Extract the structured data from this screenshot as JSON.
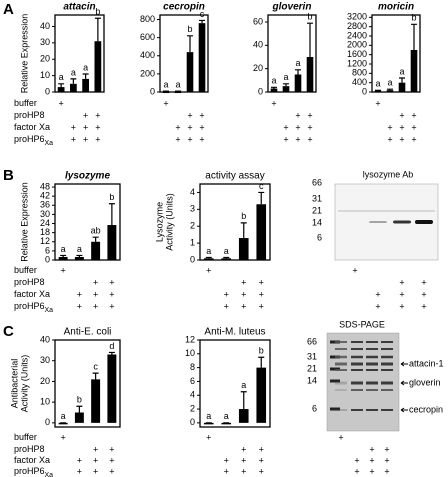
{
  "panel_labels": [
    "A",
    "B",
    "C"
  ],
  "conditions": {
    "rows": [
      {
        "text": "buffer"
      },
      {
        "text": "proHP8"
      },
      {
        "text": "factor Xa"
      },
      {
        "text": "proHP6",
        "sub": "Xa"
      }
    ],
    "signs": [
      [
        "+",
        null,
        null,
        null
      ],
      [
        null,
        null,
        "+",
        "+"
      ],
      [
        null,
        "+",
        "+",
        "+"
      ],
      [
        null,
        "+",
        "+",
        "+"
      ]
    ]
  },
  "chart_data": [
    {
      "type": "bar",
      "title": "attacin",
      "title_italic": true,
      "ylabel": [
        "Relative Expression"
      ],
      "color": "#000000",
      "ylim": [
        0,
        47
      ],
      "yticks": [
        0,
        10,
        20,
        30,
        40
      ],
      "values": [
        3,
        5,
        8,
        31
      ],
      "errors": [
        2,
        3,
        3,
        14
      ],
      "letters": [
        "a",
        "a",
        "a",
        "b"
      ]
    },
    {
      "type": "bar",
      "title": "cecropin",
      "title_italic": true,
      "color": "#000000",
      "ylim": [
        0,
        850
      ],
      "yticks": [
        0,
        200,
        400,
        600,
        800
      ],
      "values": [
        5,
        5,
        440,
        760
      ],
      "errors": [
        5,
        5,
        180,
        30
      ],
      "letters": [
        "a",
        "a",
        "b",
        "c"
      ]
    },
    {
      "type": "bar",
      "title": "gloverin",
      "title_italic": true,
      "color": "#000000",
      "ylim": [
        0,
        66
      ],
      "yticks": [
        0,
        20,
        40,
        60
      ],
      "values": [
        3,
        5,
        15,
        30
      ],
      "errors": [
        1,
        2,
        4,
        29
      ],
      "letters": [
        "a",
        "a",
        "a",
        "b"
      ]
    },
    {
      "type": "bar",
      "title": "moricin",
      "title_italic": true,
      "color": "#000000",
      "ylim": [
        0,
        3300
      ],
      "yticks": [
        0,
        400,
        800,
        1200,
        1600,
        2000,
        2400,
        2800,
        3200
      ],
      "values": [
        50,
        80,
        400,
        1800
      ],
      "errors": [
        20,
        40,
        200,
        1100
      ],
      "letters": [
        "a",
        "a",
        "a",
        "b"
      ]
    },
    {
      "type": "bar",
      "title": "lysozyme",
      "title_italic": true,
      "ylabel": [
        "Relative Expression"
      ],
      "color": "#000000",
      "ylim": [
        0,
        50
      ],
      "yticks": [
        0,
        6,
        12,
        18,
        24,
        30,
        36,
        42,
        48
      ],
      "values": [
        2,
        2,
        12,
        23
      ],
      "errors": [
        1,
        1,
        3,
        14
      ],
      "letters": [
        "a",
        "a",
        "ab",
        "b"
      ]
    },
    {
      "type": "bar",
      "title": "activity assay",
      "title_italic": false,
      "ylabel": [
        "Lysozyme",
        "Activity (Units)"
      ],
      "color": "#000000",
      "ylim": [
        0,
        4.5
      ],
      "yticks": [
        0,
        1,
        2,
        3,
        4
      ],
      "values": [
        0.1,
        0.1,
        1.3,
        3.3
      ],
      "errors": [
        0.05,
        0.05,
        0.9,
        0.7
      ],
      "letters": [
        "a",
        "a",
        "b",
        "c"
      ]
    },
    {
      "type": "bar",
      "title": "Anti-E. coli",
      "title_italic": false,
      "ylabel": [
        "Antibacterial",
        "Activity (Units)"
      ],
      "color": "#000000",
      "ylim": [
        -2,
        40
      ],
      "yticks": [
        0,
        10,
        20,
        30,
        40
      ],
      "values": [
        0,
        5,
        21,
        33
      ],
      "errors": [
        0,
        3,
        3,
        1
      ],
      "letters": [
        "a",
        "b",
        "c",
        "d"
      ]
    },
    {
      "type": "bar",
      "title": "Anti-M. luteus",
      "title_italic": false,
      "color": "#000000",
      "ylim": [
        -0.6,
        12
      ],
      "yticks": [
        0,
        2,
        4,
        6,
        8,
        10,
        12
      ],
      "values": [
        0,
        0,
        2,
        8
      ],
      "errors": [
        0,
        0,
        2.5,
        1.5
      ],
      "letters": [
        "a",
        "a",
        "a",
        "b"
      ]
    }
  ],
  "blots": [
    {
      "title": "lysozyme Ab",
      "markers": [
        "66",
        "31",
        "21",
        "14",
        "6"
      ]
    },
    {
      "title": "SDS-PAGE",
      "markers": [
        "66",
        "31",
        "21",
        "14",
        "6"
      ],
      "bands": [
        "attacin-1",
        "gloverin",
        "cecropin"
      ]
    }
  ]
}
